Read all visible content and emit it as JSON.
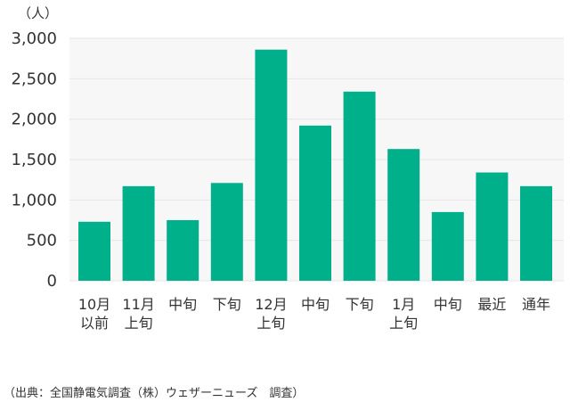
{
  "chart_data": {
    "type": "bar",
    "ylabel": "（人）",
    "ylim": [
      0,
      3000
    ],
    "yticks": [
      "0",
      "500",
      "1,000",
      "1,500",
      "2,000",
      "2,500",
      "3,000"
    ],
    "categories": [
      "10月以前",
      "11月上旬",
      "中旬",
      "下旬",
      "12月上旬",
      "中旬",
      "下旬",
      "1月上旬",
      "中旬",
      "最近",
      "通年"
    ],
    "values": [
      730,
      1170,
      750,
      1210,
      2860,
      1920,
      2340,
      1630,
      850,
      1340,
      1170
    ],
    "grid": true,
    "bar_color": "#00b08a",
    "grid_color": "#e6e6e6",
    "source": "（出典：全国静電気調査（株）ウェザーニューズ　調査）"
  }
}
